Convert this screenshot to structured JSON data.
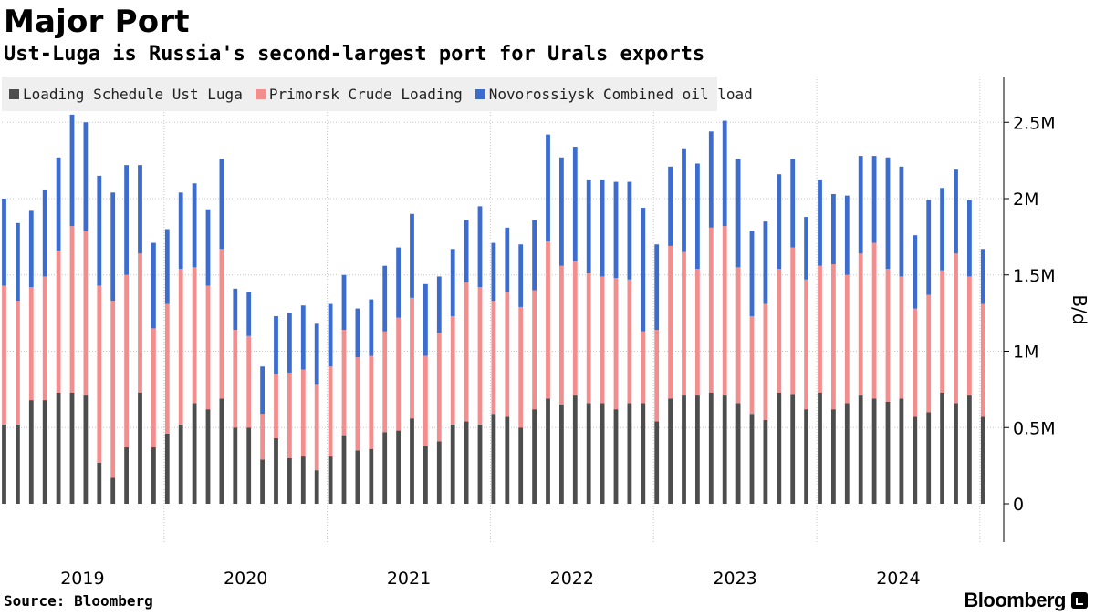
{
  "header": {
    "title": "Major Port",
    "subtitle": "Ust-Luga is Russia's second-largest port for Urals exports"
  },
  "legend": [
    {
      "label": "Loading Schedule Ust Luga",
      "color": "#4d4d4d"
    },
    {
      "label": "Primorsk Crude Loading",
      "color": "#f28e8e"
    },
    {
      "label": "Novorossiysk Combined oil load",
      "color": "#3c6ccd"
    }
  ],
  "footer": {
    "source": "Source: Bloomberg",
    "brand": "Bloomberg"
  },
  "chart_data": {
    "type": "bar",
    "stacked": true,
    "title": "Major Port",
    "subtitle": "Ust-Luga is Russia's second-largest port for Urals exports",
    "ylabel": "B/d",
    "ylim": [
      0,
      2800000
    ],
    "yticks": [
      0,
      500000,
      1000000,
      1500000,
      2000000,
      2500000
    ],
    "ytick_labels": [
      "0",
      "0.5M",
      "1M",
      "1.5M",
      "2M",
      "2.5M"
    ],
    "xtick_labels": [
      "2019",
      "2020",
      "2021",
      "2022",
      "2023",
      "2024"
    ],
    "grid": true,
    "legend_position": "top-left",
    "period_start": "2019-01",
    "period_end": "2024-12",
    "series": [
      {
        "name": "Loading Schedule Ust Luga",
        "color": "#4d4d4d",
        "values": [
          520000,
          520000,
          680000,
          680000,
          730000,
          730000,
          710000,
          270000,
          170000,
          370000,
          730000,
          370000,
          460000,
          520000,
          660000,
          620000,
          690000,
          500000,
          500000,
          290000,
          430000,
          300000,
          310000,
          220000,
          310000,
          450000,
          350000,
          360000,
          470000,
          480000,
          560000,
          380000,
          410000,
          520000,
          540000,
          520000,
          590000,
          570000,
          500000,
          620000,
          690000,
          650000,
          710000,
          660000,
          660000,
          620000,
          660000,
          660000,
          540000,
          690000,
          710000,
          710000,
          730000,
          710000,
          660000,
          590000,
          550000,
          730000,
          720000,
          620000,
          730000,
          620000,
          660000,
          710000,
          690000,
          670000,
          690000,
          570000,
          600000,
          730000,
          660000,
          710000,
          570000
        ]
      },
      {
        "name": "Primorsk Crude Loading",
        "color": "#f28e8e",
        "values": [
          910000,
          810000,
          740000,
          810000,
          930000,
          1090000,
          1080000,
          1160000,
          1160000,
          1130000,
          910000,
          780000,
          850000,
          1020000,
          890000,
          810000,
          980000,
          640000,
          600000,
          300000,
          420000,
          560000,
          570000,
          560000,
          590000,
          690000,
          610000,
          610000,
          660000,
          740000,
          790000,
          590000,
          710000,
          710000,
          910000,
          900000,
          740000,
          820000,
          790000,
          780000,
          1030000,
          910000,
          880000,
          850000,
          830000,
          860000,
          810000,
          470000,
          600000,
          1000000,
          940000,
          830000,
          1080000,
          1110000,
          890000,
          640000,
          760000,
          810000,
          960000,
          850000,
          830000,
          950000,
          840000,
          930000,
          1020000,
          870000,
          800000,
          710000,
          770000,
          800000,
          980000,
          780000,
          740000
        ]
      },
      {
        "name": "Novorossiysk Combined oil load",
        "color": "#3c6ccd",
        "values": [
          570000,
          510000,
          500000,
          570000,
          610000,
          730000,
          710000,
          720000,
          710000,
          720000,
          580000,
          560000,
          490000,
          500000,
          550000,
          500000,
          590000,
          270000,
          290000,
          310000,
          380000,
          390000,
          420000,
          400000,
          410000,
          360000,
          320000,
          370000,
          430000,
          460000,
          550000,
          470000,
          370000,
          440000,
          410000,
          530000,
          380000,
          420000,
          410000,
          460000,
          700000,
          710000,
          750000,
          610000,
          630000,
          630000,
          640000,
          810000,
          560000,
          520000,
          680000,
          690000,
          630000,
          690000,
          710000,
          560000,
          540000,
          620000,
          580000,
          410000,
          560000,
          460000,
          520000,
          640000,
          570000,
          730000,
          720000,
          480000,
          620000,
          540000,
          550000,
          500000,
          360000
        ]
      }
    ]
  }
}
